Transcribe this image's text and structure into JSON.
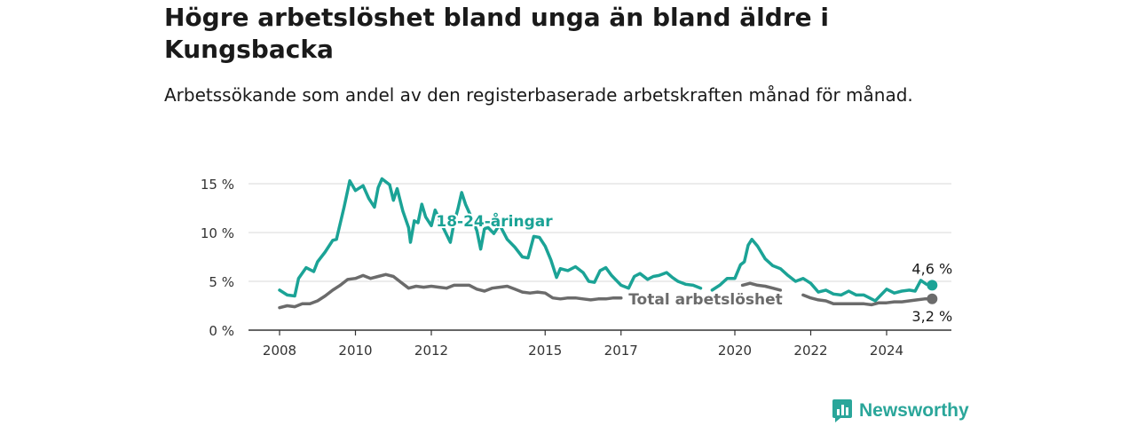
{
  "title": "Högre arbetslöshet bland unga än bland äldre i Kungsbacka",
  "subtitle": "Arbetssökande som andel av den registerbaserade arbetskraften månad för månad.",
  "brand": {
    "name": "Newsworthy",
    "icon": "newsworthy-logo-icon",
    "color": "#2aa69a"
  },
  "chart_data": {
    "type": "line",
    "xlabel": "",
    "ylabel": "",
    "xlim": [
      2007.6,
      2025.6
    ],
    "ylim": [
      0,
      16
    ],
    "grid": true,
    "x_ticks": [
      2008,
      2010,
      2012,
      2015,
      2017,
      2020,
      2022,
      2024
    ],
    "x_tick_labels": [
      "2008",
      "2010",
      "2012",
      "2015",
      "2017",
      "2020",
      "2022",
      "2024"
    ],
    "y_ticks": [
      0,
      5,
      10,
      15
    ],
    "y_tick_labels": [
      "0 %",
      "5 %",
      "10 %",
      "15 %"
    ],
    "series": [
      {
        "name": "18-24-åringar",
        "color": "#1ba396",
        "label": "18-24-åringar",
        "end_label": "4,6 %",
        "points": [
          [
            2008.0,
            4.1
          ],
          [
            2008.2,
            3.6
          ],
          [
            2008.4,
            3.5
          ],
          [
            2008.5,
            5.3
          ],
          [
            2008.7,
            6.4
          ],
          [
            2008.9,
            6.0
          ],
          [
            2009.0,
            7.0
          ],
          [
            2009.2,
            8.0
          ],
          [
            2009.4,
            9.2
          ],
          [
            2009.5,
            9.3
          ],
          [
            2009.7,
            12.6
          ],
          [
            2009.85,
            15.3
          ],
          [
            2010.0,
            14.3
          ],
          [
            2010.2,
            14.8
          ],
          [
            2010.35,
            13.5
          ],
          [
            2010.5,
            12.6
          ],
          [
            2010.6,
            14.6
          ],
          [
            2010.7,
            15.5
          ],
          [
            2010.9,
            14.9
          ],
          [
            2011.0,
            13.3
          ],
          [
            2011.1,
            14.5
          ],
          [
            2011.25,
            12.2
          ],
          [
            2011.4,
            10.5
          ],
          [
            2011.45,
            9.0
          ],
          [
            2011.55,
            11.2
          ],
          [
            2011.65,
            11.0
          ],
          [
            2011.75,
            12.9
          ],
          [
            2011.85,
            11.6
          ],
          [
            2012.0,
            10.7
          ],
          [
            2012.1,
            12.3
          ],
          [
            2012.3,
            10.6
          ],
          [
            2012.5,
            9.0
          ],
          [
            2012.6,
            11.0
          ],
          [
            2012.7,
            12.4
          ],
          [
            2012.8,
            14.1
          ],
          [
            2012.9,
            12.9
          ],
          [
            2013.05,
            11.6
          ],
          [
            2013.2,
            10.2
          ],
          [
            2013.3,
            8.3
          ],
          [
            2013.4,
            10.4
          ],
          [
            2013.5,
            10.5
          ],
          [
            2013.65,
            9.9
          ],
          [
            2013.8,
            10.8
          ],
          [
            2014.0,
            9.3
          ],
          [
            2014.2,
            8.5
          ],
          [
            2014.4,
            7.5
          ],
          [
            2014.55,
            7.4
          ],
          [
            2014.7,
            9.6
          ],
          [
            2014.85,
            9.5
          ],
          [
            2015.0,
            8.6
          ],
          [
            2015.15,
            7.2
          ],
          [
            2015.3,
            5.4
          ],
          [
            2015.4,
            6.3
          ],
          [
            2015.6,
            6.1
          ],
          [
            2015.8,
            6.5
          ],
          [
            2016.0,
            5.9
          ],
          [
            2016.15,
            5.0
          ],
          [
            2016.3,
            4.9
          ],
          [
            2016.45,
            6.1
          ],
          [
            2016.6,
            6.4
          ],
          [
            2016.75,
            5.6
          ],
          [
            2016.9,
            5.0
          ],
          [
            2017.0,
            4.6
          ],
          [
            2017.2,
            4.3
          ],
          [
            2017.35,
            5.5
          ],
          [
            2017.5,
            5.8
          ],
          [
            2017.7,
            5.2
          ],
          [
            2017.85,
            5.5
          ],
          [
            2018.0,
            5.6
          ],
          [
            2018.2,
            5.9
          ],
          [
            2018.35,
            5.4
          ],
          [
            2018.5,
            5.0
          ],
          [
            2018.7,
            4.7
          ],
          [
            2018.9,
            4.6
          ],
          [
            2019.1,
            4.3
          ],
          null,
          [
            2019.4,
            4.1
          ],
          [
            2019.6,
            4.6
          ],
          [
            2019.8,
            5.3
          ],
          [
            2020.0,
            5.3
          ],
          [
            2020.15,
            6.7
          ],
          [
            2020.25,
            7.0
          ],
          [
            2020.35,
            8.7
          ],
          [
            2020.45,
            9.3
          ],
          [
            2020.6,
            8.6
          ],
          [
            2020.8,
            7.3
          ],
          [
            2021.0,
            6.6
          ],
          [
            2021.2,
            6.3
          ],
          [
            2021.4,
            5.6
          ],
          [
            2021.6,
            5.0
          ],
          [
            2021.8,
            5.3
          ],
          [
            2022.0,
            4.8
          ],
          [
            2022.2,
            3.9
          ],
          [
            2022.4,
            4.1
          ],
          [
            2022.6,
            3.7
          ],
          [
            2022.8,
            3.6
          ],
          [
            2023.0,
            4.0
          ],
          [
            2023.2,
            3.6
          ],
          [
            2023.4,
            3.6
          ],
          [
            2023.55,
            3.3
          ],
          [
            2023.7,
            3.0
          ],
          [
            2023.85,
            3.6
          ],
          [
            2024.0,
            4.2
          ],
          [
            2024.2,
            3.8
          ],
          [
            2024.4,
            4.0
          ],
          [
            2024.6,
            4.1
          ],
          [
            2024.75,
            4.0
          ],
          [
            2024.9,
            5.1
          ],
          [
            2025.05,
            4.7
          ],
          [
            2025.2,
            4.6
          ]
        ]
      },
      {
        "name": "Total arbetslöshet",
        "color": "#6b6b6b",
        "label": "Total arbetslöshet",
        "end_label": "3,2 %",
        "points": [
          [
            2008.0,
            2.3
          ],
          [
            2008.2,
            2.5
          ],
          [
            2008.4,
            2.4
          ],
          [
            2008.6,
            2.7
          ],
          [
            2008.8,
            2.7
          ],
          [
            2009.0,
            3.0
          ],
          [
            2009.2,
            3.5
          ],
          [
            2009.4,
            4.1
          ],
          [
            2009.6,
            4.6
          ],
          [
            2009.8,
            5.2
          ],
          [
            2010.0,
            5.3
          ],
          [
            2010.2,
            5.6
          ],
          [
            2010.4,
            5.3
          ],
          [
            2010.6,
            5.5
          ],
          [
            2010.8,
            5.7
          ],
          [
            2011.0,
            5.5
          ],
          [
            2011.2,
            4.9
          ],
          [
            2011.4,
            4.3
          ],
          [
            2011.6,
            4.5
          ],
          [
            2011.8,
            4.4
          ],
          [
            2012.0,
            4.5
          ],
          [
            2012.2,
            4.4
          ],
          [
            2012.4,
            4.3
          ],
          [
            2012.6,
            4.6
          ],
          [
            2012.8,
            4.6
          ],
          [
            2013.0,
            4.6
          ],
          [
            2013.2,
            4.2
          ],
          [
            2013.4,
            4.0
          ],
          [
            2013.6,
            4.3
          ],
          [
            2013.8,
            4.4
          ],
          [
            2014.0,
            4.5
          ],
          [
            2014.2,
            4.2
          ],
          [
            2014.4,
            3.9
          ],
          [
            2014.6,
            3.8
          ],
          [
            2014.8,
            3.9
          ],
          [
            2015.0,
            3.8
          ],
          [
            2015.2,
            3.3
          ],
          [
            2015.4,
            3.2
          ],
          [
            2015.6,
            3.3
          ],
          [
            2015.8,
            3.3
          ],
          [
            2016.0,
            3.2
          ],
          [
            2016.2,
            3.1
          ],
          [
            2016.4,
            3.2
          ],
          [
            2016.6,
            3.2
          ],
          [
            2016.8,
            3.3
          ],
          [
            2017.0,
            3.3
          ],
          null,
          [
            2020.2,
            4.6
          ],
          [
            2020.4,
            4.8
          ],
          [
            2020.6,
            4.6
          ],
          [
            2020.8,
            4.5
          ],
          [
            2021.0,
            4.3
          ],
          [
            2021.2,
            4.1
          ],
          null,
          [
            2021.8,
            3.6
          ],
          [
            2022.0,
            3.3
          ],
          [
            2022.2,
            3.1
          ],
          [
            2022.4,
            3.0
          ],
          [
            2022.6,
            2.7
          ],
          [
            2022.8,
            2.7
          ],
          [
            2023.0,
            2.7
          ],
          [
            2023.2,
            2.7
          ],
          [
            2023.4,
            2.7
          ],
          [
            2023.6,
            2.6
          ],
          [
            2023.8,
            2.8
          ],
          [
            2024.0,
            2.8
          ],
          [
            2024.2,
            2.9
          ],
          [
            2024.4,
            2.9
          ],
          [
            2024.6,
            3.0
          ],
          [
            2024.8,
            3.1
          ],
          [
            2025.0,
            3.2
          ],
          [
            2025.2,
            3.2
          ]
        ]
      }
    ]
  }
}
